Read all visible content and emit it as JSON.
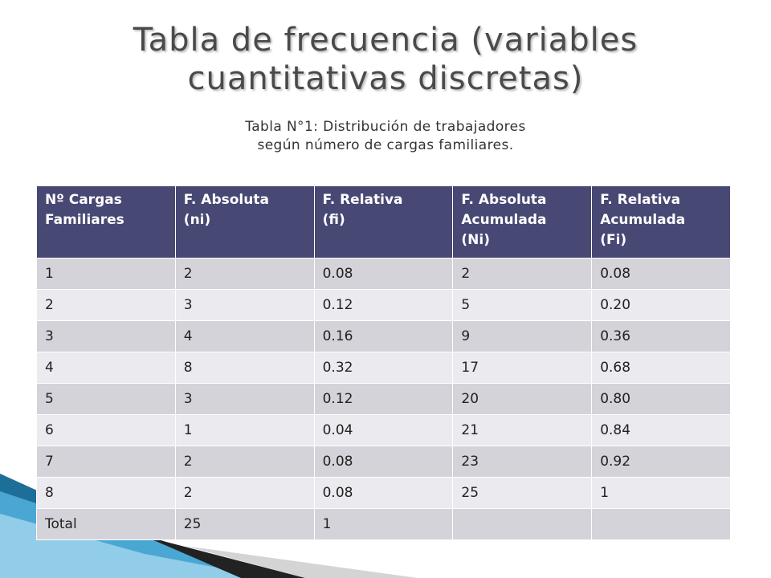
{
  "slide": {
    "title": "Tabla de frecuencia (variables cuantitativas discretas)",
    "caption_line1": "Tabla N°1: Distribución de trabajadores",
    "caption_line2": "según número de cargas familiares."
  },
  "table": {
    "headers": [
      [
        "Nº Cargas",
        "Familiares"
      ],
      [
        "F. Absoluta",
        "(ni)"
      ],
      [
        "F. Relativa",
        "(fi)"
      ],
      [
        "F. Absoluta",
        "Acumulada",
        "(Ni)"
      ],
      [
        "F. Relativa",
        "Acumulada",
        "(Fi)"
      ]
    ],
    "rows": [
      [
        "1",
        "2",
        "0.08",
        "2",
        "0.08"
      ],
      [
        "2",
        "3",
        "0.12",
        "5",
        "0.20"
      ],
      [
        "3",
        "4",
        "0.16",
        "9",
        "0.36"
      ],
      [
        "4",
        "8",
        "0.32",
        "17",
        "0.68"
      ],
      [
        "5",
        "3",
        "0.12",
        "20",
        "0.80"
      ],
      [
        "6",
        "1",
        "0.04",
        "21",
        "0.84"
      ],
      [
        "7",
        "2",
        "0.08",
        "23",
        "0.92"
      ],
      [
        "8",
        "2",
        "0.08",
        "25",
        "1"
      ],
      [
        "Total",
        "25",
        "1",
        "",
        ""
      ]
    ]
  },
  "colors": {
    "header_bg": "#474874",
    "row_odd": "#d3d3d9",
    "row_even": "#eaeaef",
    "title_text": "#4a4a4a"
  }
}
